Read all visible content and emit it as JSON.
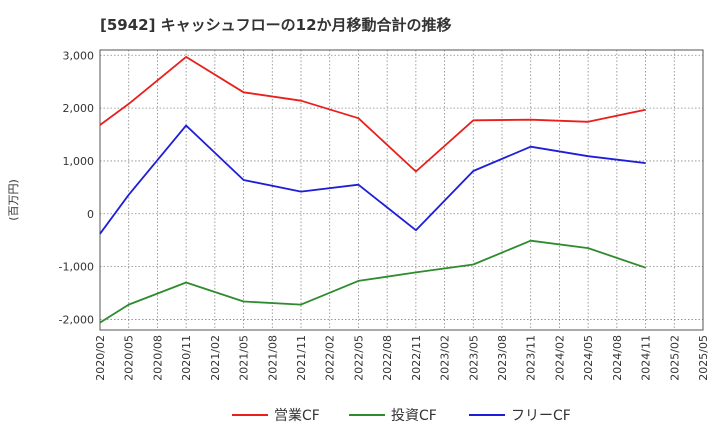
{
  "title": "[5942]  キャッシュフローの12か月移動合計の推移",
  "chart_data": {
    "type": "line",
    "title": "[5942]  キャッシュフローの12か月移動合計の推移",
    "ylabel": "(百万円)",
    "xlabel": "",
    "ylim": [
      -2200,
      3100
    ],
    "yticks": [
      -2000,
      -1000,
      0,
      1000,
      2000,
      3000
    ],
    "ytick_labels": [
      "-2,000",
      "-1,000",
      "0",
      "1,000",
      "2,000",
      "3,000"
    ],
    "x_tick_labels": [
      "2020/02",
      "2020/05",
      "2020/08",
      "2020/11",
      "2021/02",
      "2021/05",
      "2021/08",
      "2021/11",
      "2022/02",
      "2022/05",
      "2022/08",
      "2022/11",
      "2023/02",
      "2023/05",
      "2023/08",
      "2023/11",
      "2024/02",
      "2024/05",
      "2024/08",
      "2024/11",
      "2025/02",
      "2025/05"
    ],
    "grid": true,
    "legend_position": "bottom",
    "series": [
      {
        "name": "営業CF",
        "color": "#e8201c",
        "points": [
          {
            "x": "2020/02",
            "y": 1680
          },
          {
            "x": "2020/05",
            "y": 2080
          },
          {
            "x": "2020/11",
            "y": 2970
          },
          {
            "x": "2021/05",
            "y": 2300
          },
          {
            "x": "2021/11",
            "y": 2140
          },
          {
            "x": "2022/05",
            "y": 1810
          },
          {
            "x": "2022/11",
            "y": 800
          },
          {
            "x": "2023/05",
            "y": 1770
          },
          {
            "x": "2023/11",
            "y": 1780
          },
          {
            "x": "2024/05",
            "y": 1740
          },
          {
            "x": "2024/11",
            "y": 1970
          }
        ]
      },
      {
        "name": "投資CF",
        "color": "#2e8b2e",
        "points": [
          {
            "x": "2020/02",
            "y": -2060
          },
          {
            "x": "2020/05",
            "y": -1720
          },
          {
            "x": "2020/11",
            "y": -1300
          },
          {
            "x": "2021/05",
            "y": -1660
          },
          {
            "x": "2021/11",
            "y": -1720
          },
          {
            "x": "2022/05",
            "y": -1270
          },
          {
            "x": "2022/11",
            "y": -1110
          },
          {
            "x": "2023/05",
            "y": -960
          },
          {
            "x": "2023/11",
            "y": -510
          },
          {
            "x": "2024/05",
            "y": -650
          },
          {
            "x": "2024/11",
            "y": -1020
          }
        ]
      },
      {
        "name": "フリーCF",
        "color": "#1e1ed8",
        "points": [
          {
            "x": "2020/02",
            "y": -380
          },
          {
            "x": "2020/05",
            "y": 360
          },
          {
            "x": "2020/11",
            "y": 1670
          },
          {
            "x": "2021/05",
            "y": 640
          },
          {
            "x": "2021/11",
            "y": 420
          },
          {
            "x": "2022/05",
            "y": 550
          },
          {
            "x": "2022/11",
            "y": -310
          },
          {
            "x": "2023/05",
            "y": 810
          },
          {
            "x": "2023/11",
            "y": 1270
          },
          {
            "x": "2024/05",
            "y": 1090
          },
          {
            "x": "2024/11",
            "y": 960
          }
        ]
      }
    ]
  }
}
